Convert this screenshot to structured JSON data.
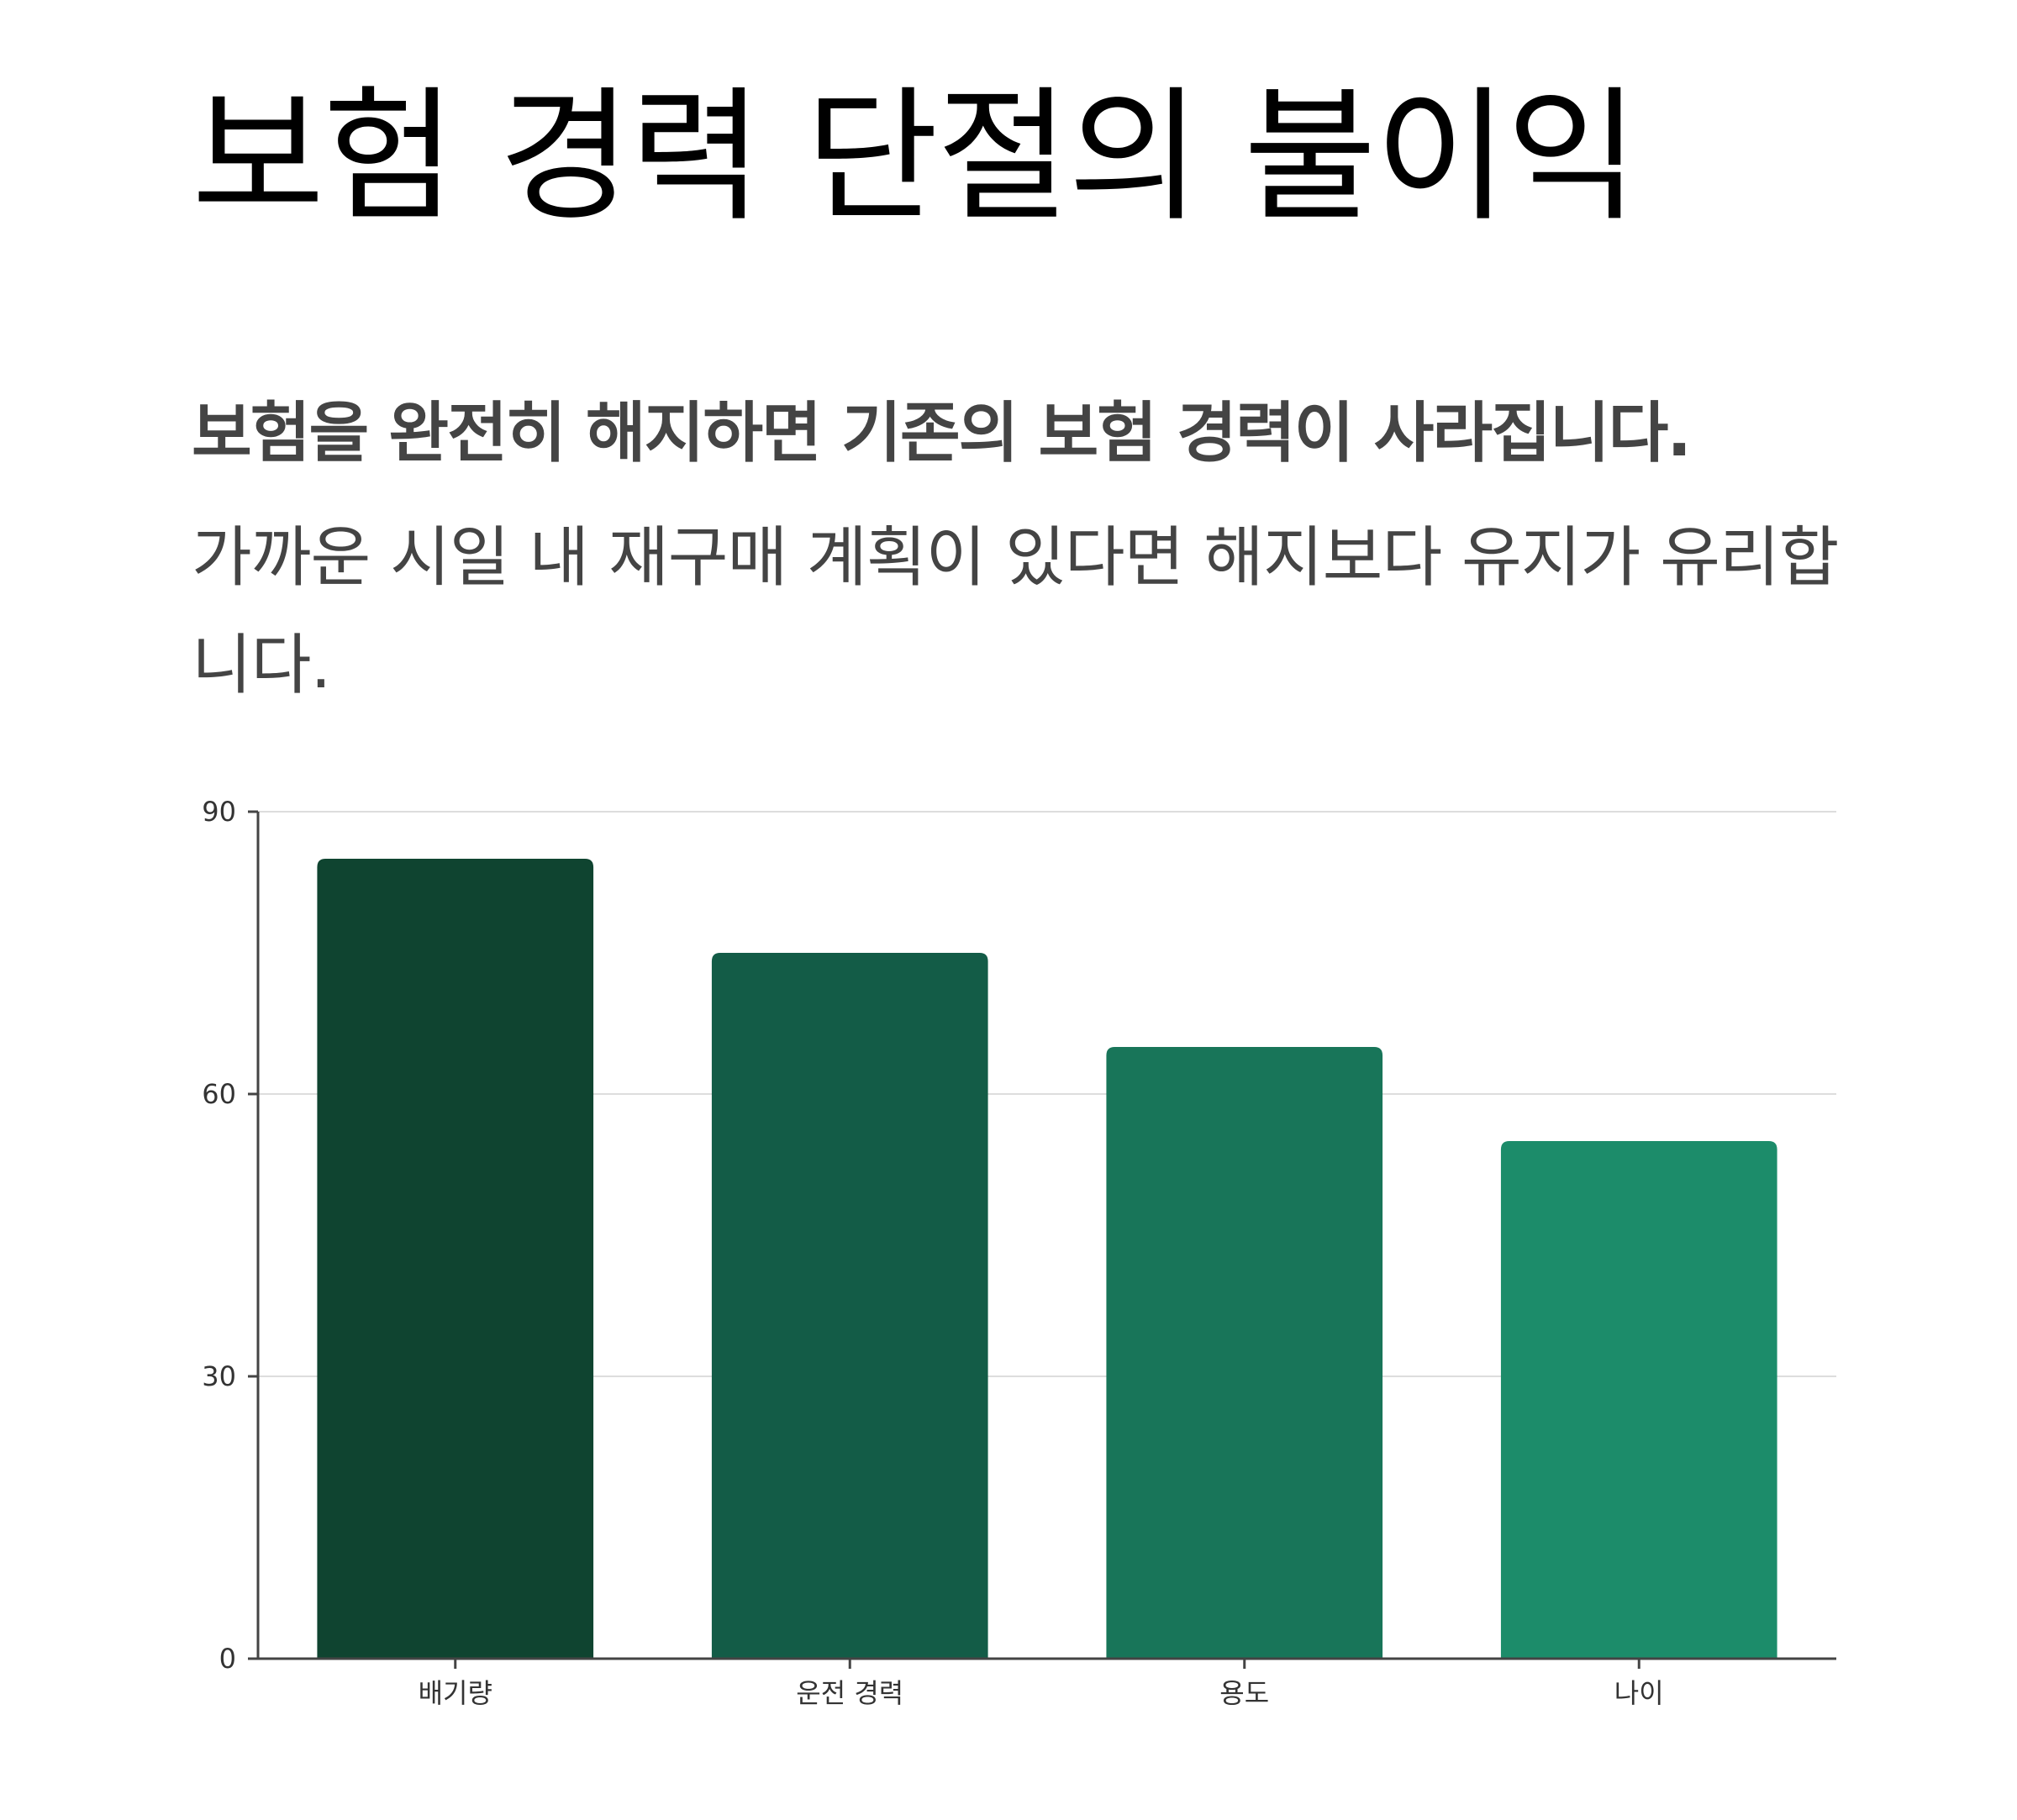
{
  "heading": "보험 경력 단절의 불이익",
  "subheading": "보험을 완전히 해지하면 기존의 보험 경력이 사라집니다.",
  "body": "가까운 시일 내 재구매 계획이 있다면 해지보다 유지가 유리합니다.",
  "chart_data": {
    "type": "bar",
    "categories": [
      "배기량",
      "운전 경력",
      "용도",
      "나이"
    ],
    "values": [
      85,
      75,
      65,
      55
    ],
    "title": "",
    "xlabel": "",
    "ylabel": "",
    "ylim": [
      0,
      90
    ],
    "yticks": [
      0,
      30,
      60,
      90
    ],
    "grid": true,
    "legend": "none",
    "colors": [
      "#0f4430",
      "#135c47",
      "#187559",
      "#1c8c6a"
    ],
    "axis_color": "#444444",
    "grid_color": "#dddddd"
  }
}
